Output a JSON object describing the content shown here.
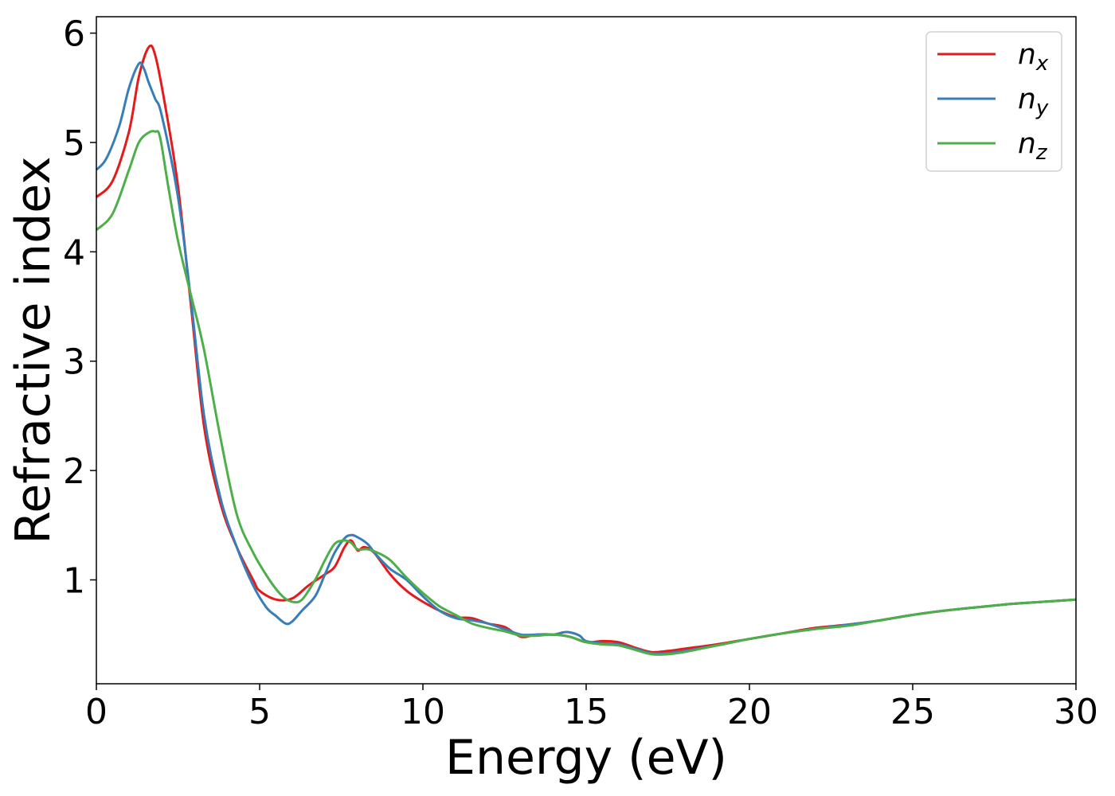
{
  "chart_data": {
    "type": "line",
    "xlabel": "Energy (eV)",
    "ylabel": "Refractive index",
    "xlim": [
      0,
      30
    ],
    "ylim": [
      0.05,
      6.15
    ],
    "xticks": [
      0,
      5,
      10,
      15,
      20,
      25,
      30
    ],
    "yticks": [
      1,
      2,
      3,
      4,
      5,
      6
    ],
    "grid": false,
    "legend_position": "top-right",
    "series": [
      {
        "name": "n_x",
        "label_main": "n",
        "label_sub": "x",
        "color": "#e41a1c",
        "x": [
          0,
          0.5,
          1.0,
          1.3,
          1.6,
          1.8,
          2.1,
          2.5,
          2.9,
          3.3,
          3.8,
          4.3,
          4.8,
          5.0,
          5.5,
          6.0,
          6.5,
          7.0,
          7.3,
          7.6,
          7.8,
          8.0,
          8.2,
          8.5,
          9.0,
          9.5,
          10.0,
          10.5,
          11.0,
          11.5,
          12.0,
          12.5,
          13.0,
          13.5,
          14.0,
          14.5,
          15.0,
          15.5,
          16.0,
          16.5,
          17.0,
          17.5,
          18.0,
          19.0,
          20.0,
          21.0,
          22.0,
          23.0,
          24.0,
          25.0,
          26.0,
          27.0,
          28.0,
          29.0,
          30.0
        ],
        "y": [
          4.5,
          4.65,
          5.1,
          5.6,
          5.87,
          5.8,
          5.35,
          4.6,
          3.5,
          2.4,
          1.7,
          1.3,
          1.0,
          0.9,
          0.82,
          0.83,
          0.95,
          1.05,
          1.12,
          1.3,
          1.36,
          1.27,
          1.3,
          1.25,
          1.05,
          0.9,
          0.8,
          0.72,
          0.66,
          0.65,
          0.6,
          0.57,
          0.48,
          0.5,
          0.5,
          0.48,
          0.43,
          0.44,
          0.43,
          0.38,
          0.34,
          0.35,
          0.37,
          0.41,
          0.46,
          0.51,
          0.56,
          0.59,
          0.63,
          0.68,
          0.72,
          0.75,
          0.78,
          0.8,
          0.82
        ]
      },
      {
        "name": "n_y",
        "label_main": "n",
        "label_sub": "y",
        "color": "#377eb8",
        "x": [
          0,
          0.3,
          0.7,
          1.0,
          1.3,
          1.45,
          1.6,
          1.8,
          2.0,
          2.5,
          2.9,
          3.3,
          3.8,
          4.3,
          4.8,
          5.2,
          5.5,
          5.8,
          6.0,
          6.3,
          6.7,
          7.0,
          7.3,
          7.6,
          7.8,
          8.0,
          8.3,
          8.6,
          9.0,
          9.5,
          10.0,
          10.5,
          11.0,
          11.5,
          12.0,
          12.5,
          13.0,
          13.5,
          14.0,
          14.3,
          14.5,
          14.8,
          15.0,
          15.5,
          16.0,
          16.5,
          17.0,
          17.5,
          18.0,
          19.0,
          20.0,
          21.0,
          22.0,
          23.0,
          24.0,
          25.0,
          26.0,
          27.0,
          28.0,
          29.0,
          30.0
        ],
        "y": [
          4.75,
          4.85,
          5.15,
          5.5,
          5.72,
          5.68,
          5.55,
          5.4,
          5.25,
          4.5,
          3.55,
          2.5,
          1.75,
          1.3,
          0.95,
          0.75,
          0.67,
          0.6,
          0.62,
          0.72,
          0.85,
          1.05,
          1.25,
          1.38,
          1.41,
          1.39,
          1.33,
          1.22,
          1.1,
          1.0,
          0.85,
          0.72,
          0.65,
          0.63,
          0.6,
          0.55,
          0.5,
          0.5,
          0.5,
          0.52,
          0.52,
          0.49,
          0.44,
          0.42,
          0.41,
          0.37,
          0.33,
          0.33,
          0.35,
          0.4,
          0.46,
          0.51,
          0.55,
          0.59,
          0.63,
          0.68,
          0.72,
          0.75,
          0.78,
          0.8,
          0.82
        ]
      },
      {
        "name": "n_z",
        "label_main": "n",
        "label_sub": "z",
        "color": "#4daf4a",
        "x": [
          0,
          0.5,
          1.0,
          1.3,
          1.6,
          1.8,
          1.95,
          2.2,
          2.5,
          2.9,
          3.3,
          3.8,
          4.3,
          4.8,
          5.3,
          5.7,
          6.0,
          6.3,
          6.7,
          7.0,
          7.3,
          7.6,
          7.8,
          8.0,
          8.3,
          8.6,
          9.0,
          9.5,
          10.0,
          10.5,
          11.0,
          11.5,
          12.0,
          12.5,
          13.0,
          13.5,
          14.0,
          14.5,
          15.0,
          15.5,
          16.0,
          16.5,
          17.0,
          17.5,
          18.0,
          19.0,
          20.0,
          21.0,
          22.0,
          23.0,
          24.0,
          25.0,
          26.0,
          27.0,
          28.0,
          29.0,
          30.0
        ],
        "y": [
          4.2,
          4.35,
          4.75,
          5.0,
          5.09,
          5.1,
          5.05,
          4.6,
          4.1,
          3.6,
          3.1,
          2.3,
          1.6,
          1.25,
          1.0,
          0.85,
          0.8,
          0.82,
          1.0,
          1.18,
          1.33,
          1.36,
          1.34,
          1.28,
          1.28,
          1.25,
          1.18,
          1.02,
          0.88,
          0.76,
          0.68,
          0.6,
          0.56,
          0.53,
          0.49,
          0.49,
          0.5,
          0.48,
          0.43,
          0.41,
          0.4,
          0.36,
          0.32,
          0.32,
          0.34,
          0.4,
          0.46,
          0.51,
          0.55,
          0.58,
          0.63,
          0.68,
          0.72,
          0.75,
          0.78,
          0.8,
          0.82
        ]
      }
    ]
  }
}
